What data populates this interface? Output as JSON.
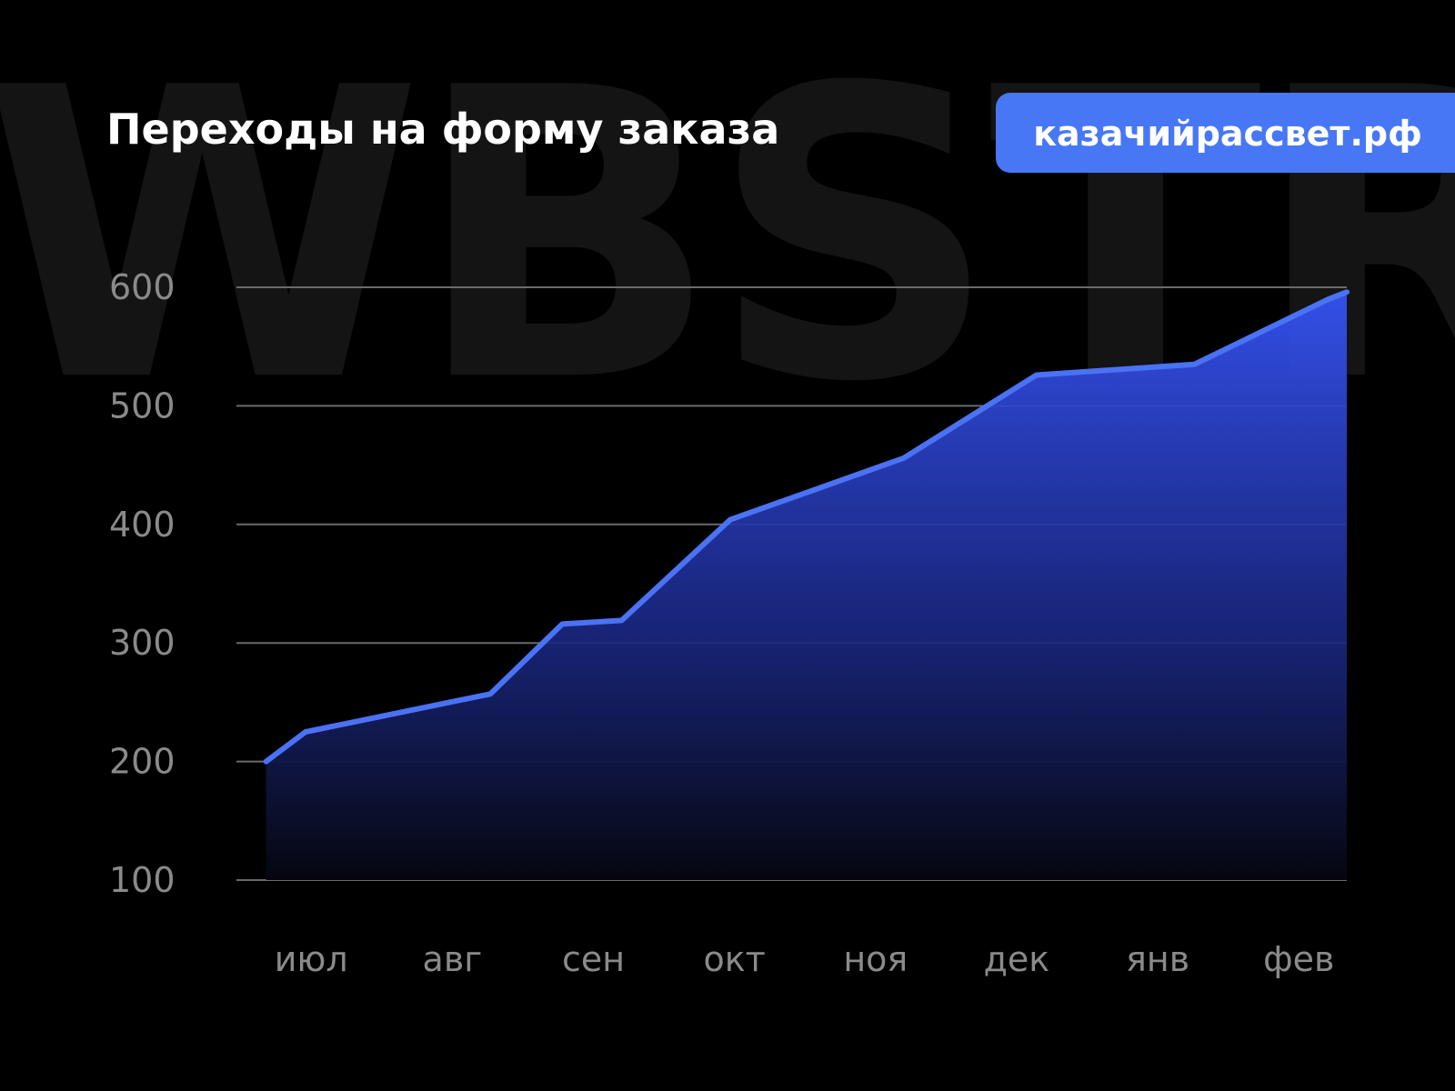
{
  "chart_data": {
    "type": "area",
    "title": "Переходы на форму заказа",
    "badge": "казачийрассвет.рф",
    "watermark": "WBSTR",
    "x": [
      -0.32,
      -0.04,
      1.27,
      1.78,
      2.2,
      2.97,
      4.2,
      5.14,
      6.26,
      7.21,
      7.34
    ],
    "series": [
      {
        "color": "#4a72f5",
        "values": [
          200,
          225,
          257,
          316,
          319,
          404,
          456,
          526,
          535,
          590,
          596
        ]
      }
    ],
    "xlim": [
      -0.53,
      7.34
    ],
    "xticks": [
      {
        "value": 0,
        "label": "июл"
      },
      {
        "value": 1,
        "label": "авг"
      },
      {
        "value": 2,
        "label": "сен"
      },
      {
        "value": 3,
        "label": "окт"
      },
      {
        "value": 4,
        "label": "ноя"
      },
      {
        "value": 5,
        "label": "дек"
      },
      {
        "value": 6,
        "label": "янв"
      },
      {
        "value": 7,
        "label": "фев"
      }
    ],
    "ylim": [
      100,
      600
    ],
    "yticks": [
      100,
      200,
      300,
      400,
      500,
      600
    ],
    "grid": true
  }
}
